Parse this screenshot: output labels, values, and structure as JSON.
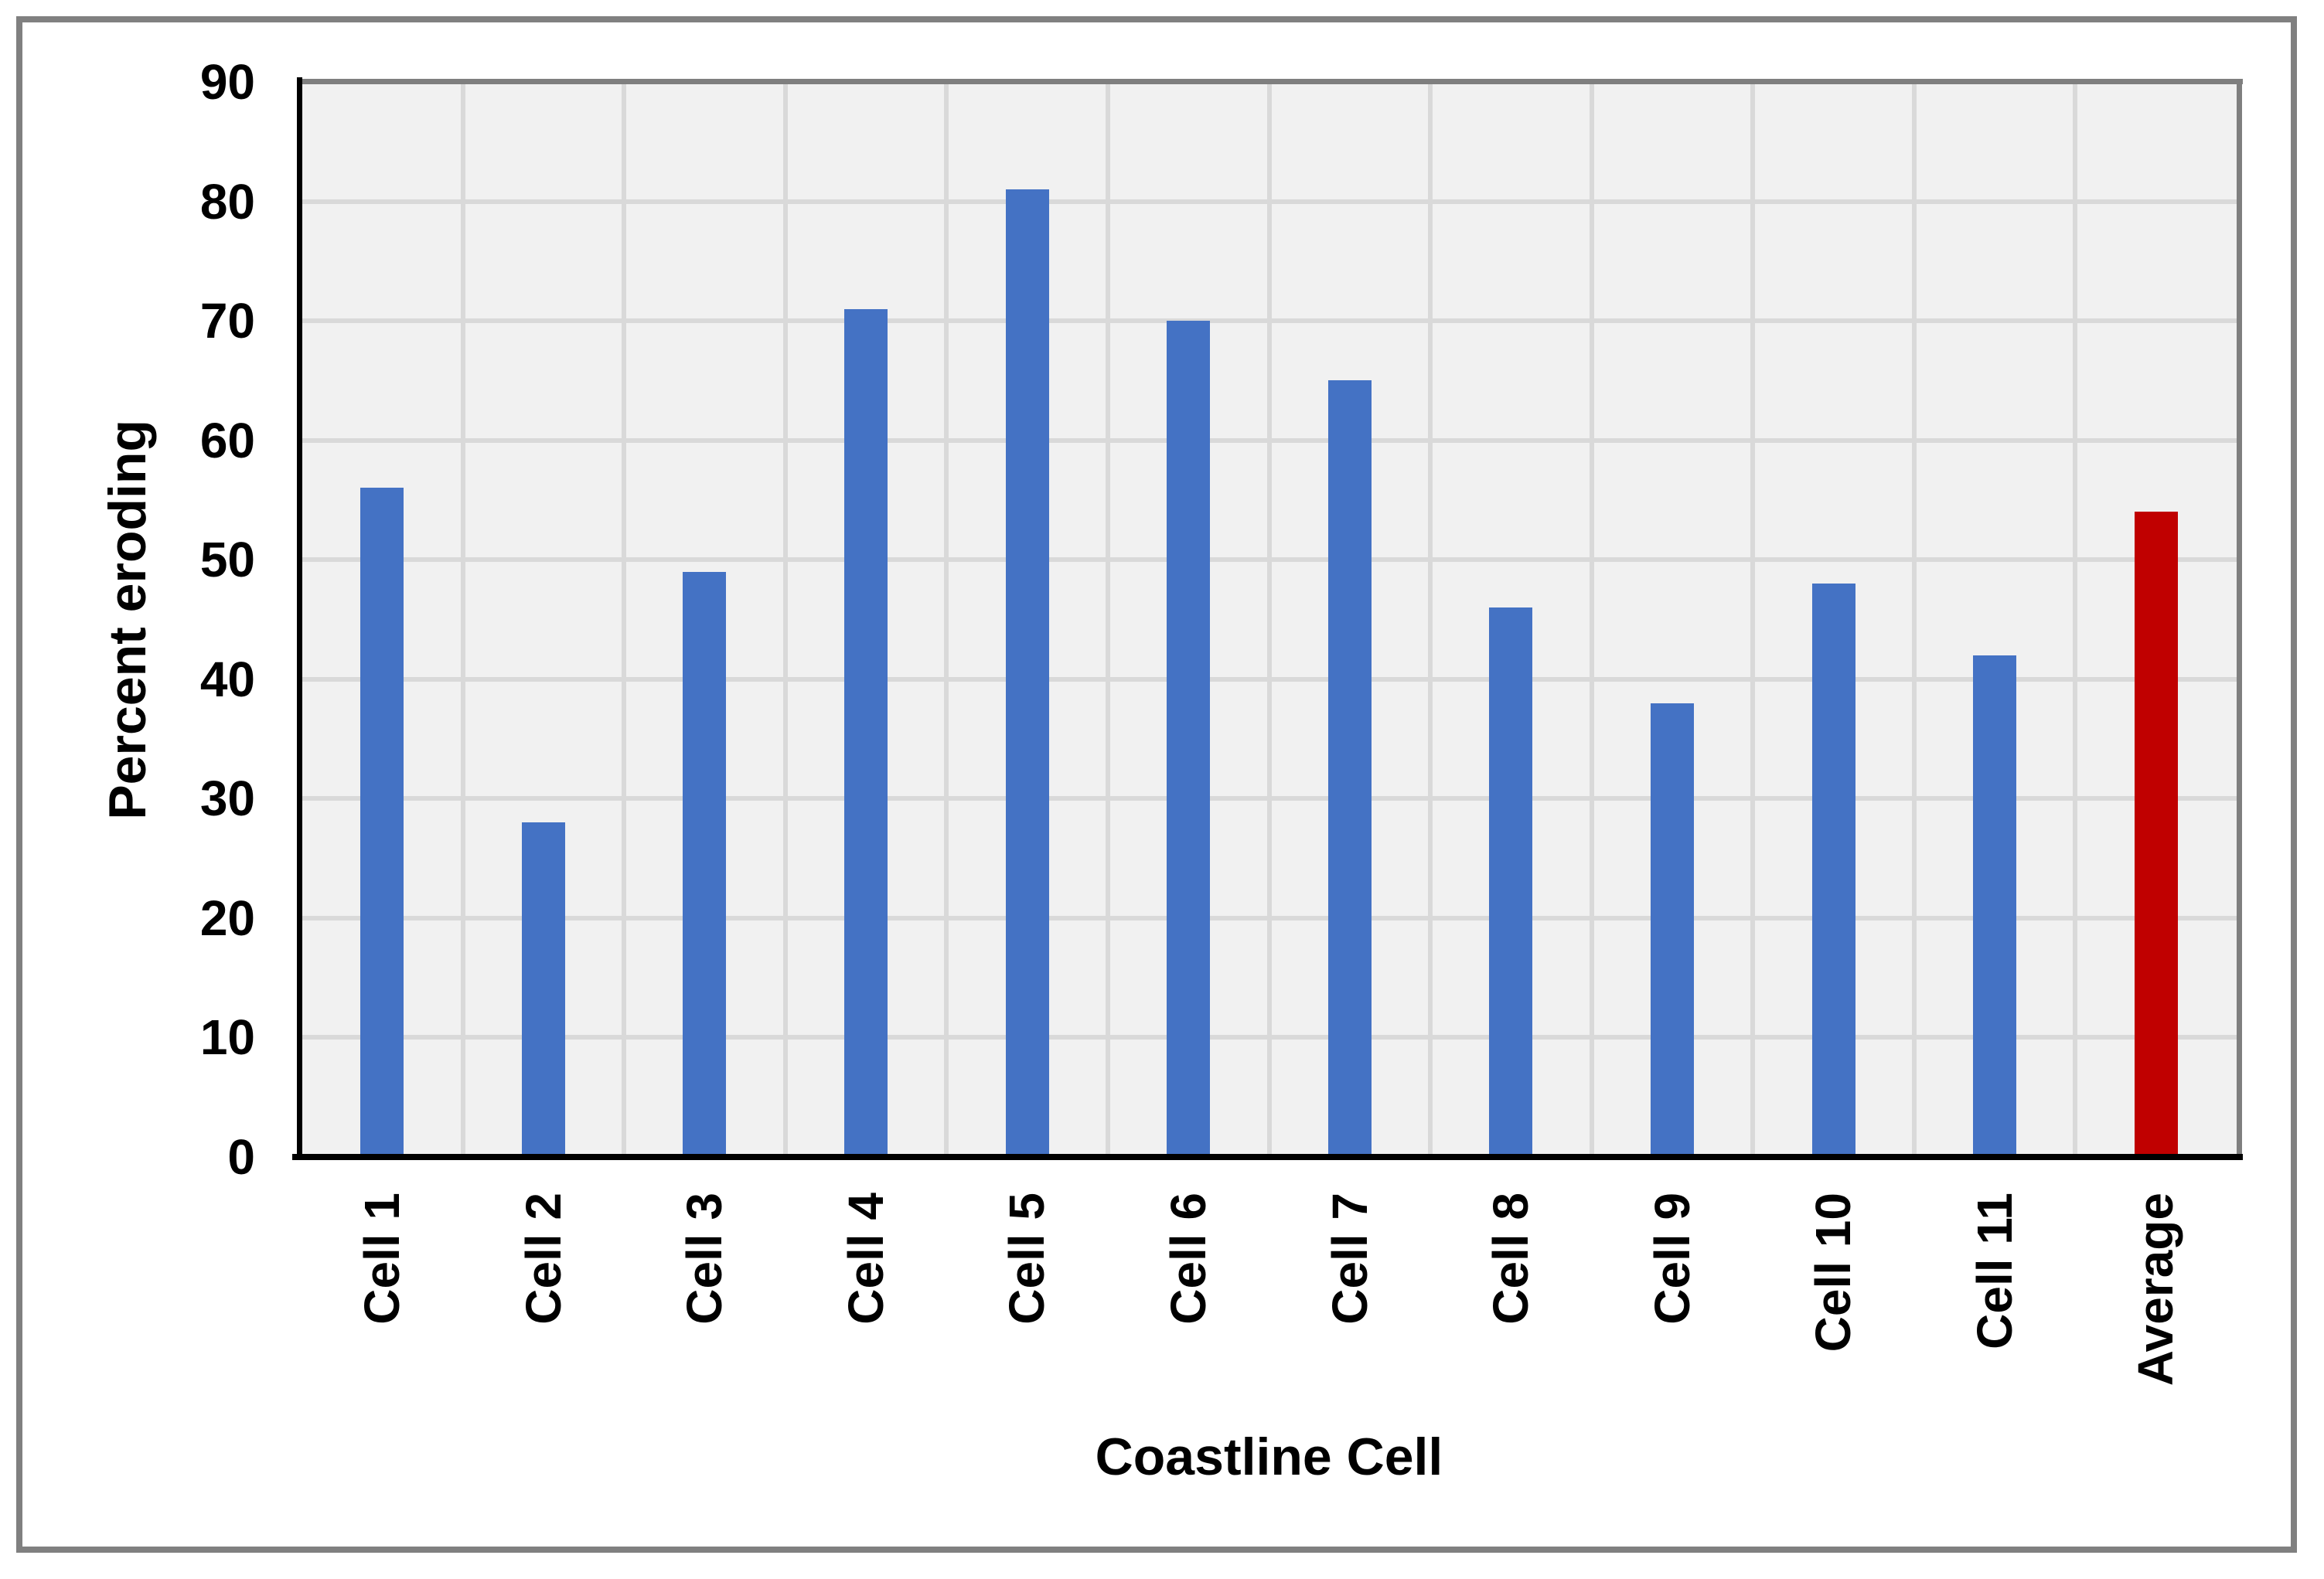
{
  "chart_data": {
    "type": "bar",
    "categories": [
      "Cell 1",
      "Cell 2",
      "Cell 3",
      "Cell 4",
      "Cell 5",
      "Cell 6",
      "Cell 7",
      "Cell 8",
      "Cell 9",
      "Cell 10",
      "Cell 11",
      "Average"
    ],
    "values": [
      56,
      28,
      49,
      71,
      81,
      70,
      65,
      46,
      38,
      48,
      42,
      54
    ],
    "title": "",
    "xlabel": "Coastline Cell",
    "ylabel": "Percent eroding",
    "ylim": [
      0,
      90
    ],
    "yticks": [
      0,
      10,
      20,
      30,
      40,
      50,
      60,
      70,
      80,
      90
    ],
    "grid": true,
    "legend": "none",
    "colors": {
      "bar_default": "#4472C4",
      "bar_average": "#C00000",
      "plot_background": "#F1F1F1",
      "gridline": "#D9D9D9",
      "plot_border": "#7F7F7F",
      "axis_line": "#000000",
      "figure_border": "#808080",
      "text": "#000000",
      "background": "#FFFFFF"
    },
    "bar_color_map": [
      "#4472C4",
      "#4472C4",
      "#4472C4",
      "#4472C4",
      "#4472C4",
      "#4472C4",
      "#4472C4",
      "#4472C4",
      "#4472C4",
      "#4472C4",
      "#4472C4",
      "#C00000"
    ]
  }
}
